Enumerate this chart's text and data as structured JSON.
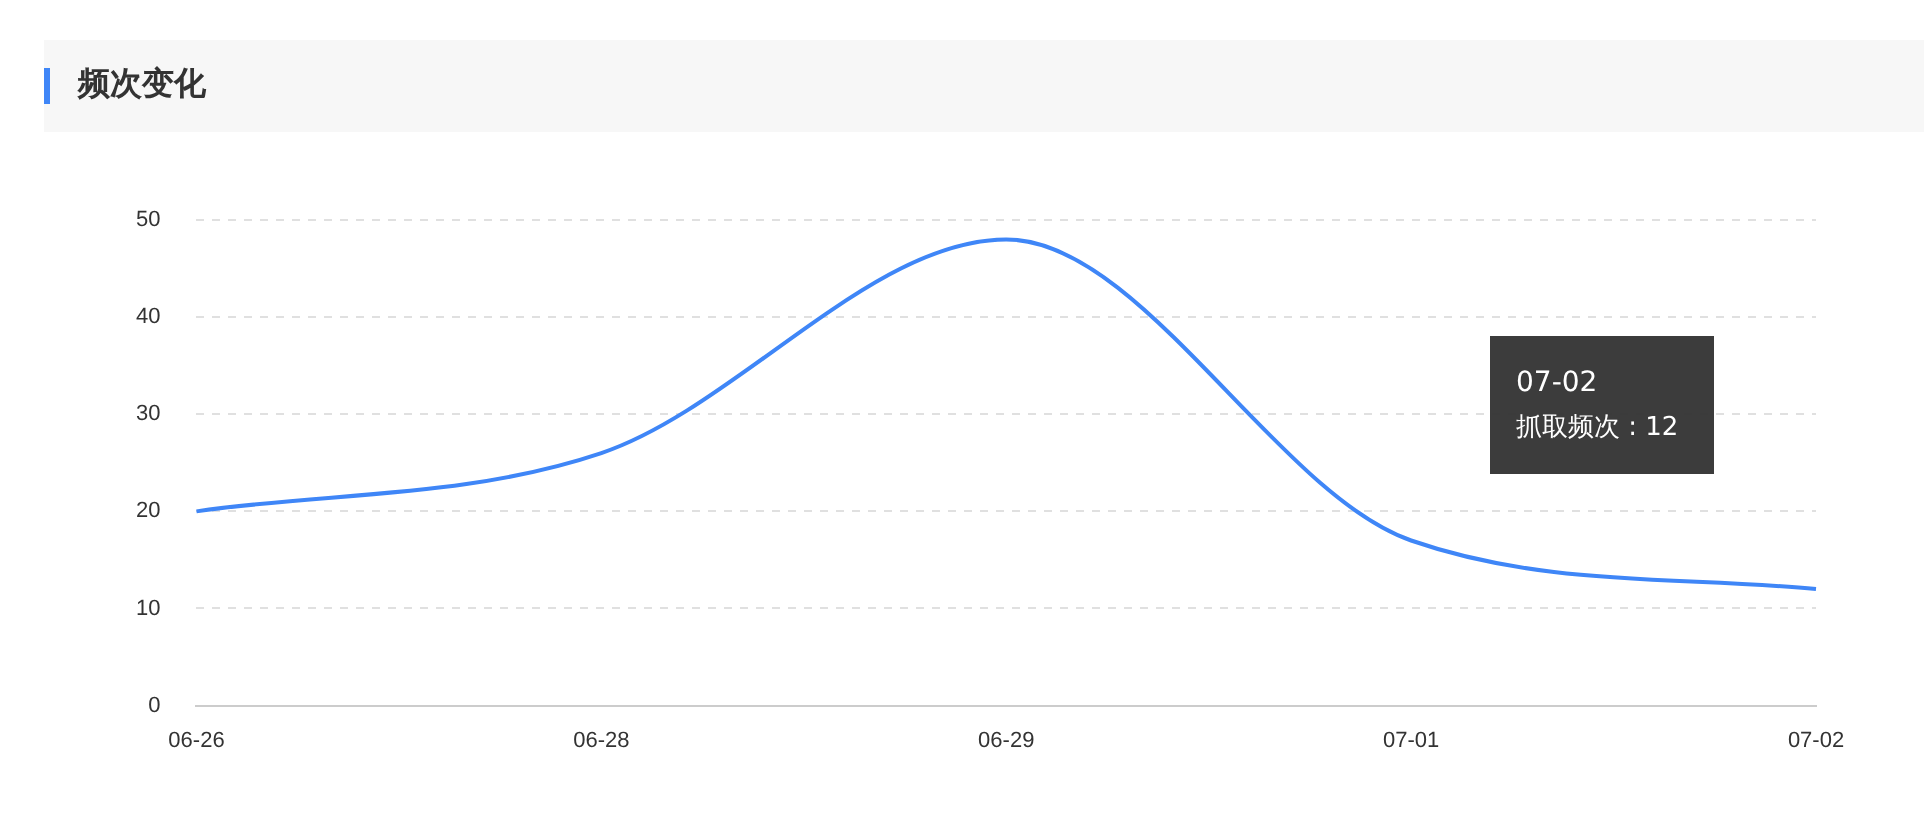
{
  "chart_data": {
    "type": "line",
    "title": "频次变化",
    "categories": [
      "06-26",
      "06-28",
      "06-29",
      "07-01",
      "07-02"
    ],
    "series": [
      {
        "color": "#3f86f7",
        "values": [
          20,
          26,
          48,
          17,
          12
        ]
      }
    ],
    "ylim": [
      0,
      50
    ],
    "yticks": [
      0,
      10,
      20,
      30,
      40,
      50
    ],
    "grid": "y",
    "legend": false,
    "marker": "none",
    "line_style": "solid",
    "annotations": [
      "07-02\n抓取频次 : 12"
    ]
  }
}
